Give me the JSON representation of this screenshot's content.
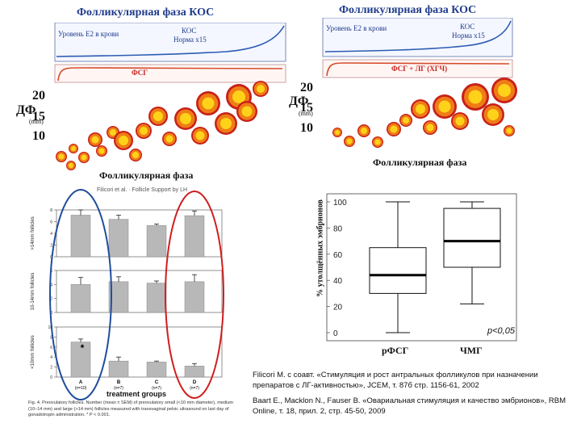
{
  "left_panel": {
    "title": "Фолликулярная фаза КОС",
    "legend_e2": "Уровень Е2 в крови",
    "legend_cos": "КОС",
    "legend_norm": "Норма х15",
    "fsh_label": "ФСГ",
    "y_label": "ДФ",
    "y_unit": "(mm)",
    "y_ticks": [
      "20",
      "15",
      "10"
    ],
    "x_label": "Фолликулярная фаза"
  },
  "right_panel": {
    "title": "Фолликулярная фаза КОС",
    "legend_e2": "Уровень Е2 в крови",
    "legend_cos": "КОС",
    "legend_norm": "Норма х15",
    "fsh_label": "ФСГ + ЛГ (ХГЧ)",
    "y_label": "ДФ",
    "y_unit": "(mm)",
    "y_ticks": [
      "20",
      "15",
      "10"
    ],
    "x_label": "Фолликулярная фаза"
  },
  "bar_figure": {
    "header": "Filicori et al. · Follicle Support by LH",
    "row_labels": [
      ">14mm follicles",
      "10-14mm follicles",
      "<10mm follicles"
    ],
    "groups": [
      {
        "name": "A",
        "n": "(n=10)"
      },
      {
        "name": "B",
        "n": "(n=7)"
      },
      {
        "name": "C",
        "n": "(n=7)"
      },
      {
        "name": "D",
        "n": "(n=7)"
      }
    ],
    "row1_ticks": [
      "8",
      "6",
      "4",
      "2",
      "0"
    ],
    "row2_ticks": [
      "6",
      "4",
      "2",
      "0"
    ],
    "row3_ticks": [
      "10",
      "8",
      "6",
      "4",
      "2",
      "0"
    ],
    "asterisk": "*",
    "x_title": "treatment groups",
    "caption": "Fig. 4. Preovulatory follicles. Number (mean ± SEM) of preovulatory small (<10 mm diameter), medium (10–14 mm) and large (>14 mm) follicles measured with transvaginal pelvic ultrasound on last day of gonadotropin administration. * P < 0.001."
  },
  "chart_data": [
    {
      "type": "bar",
      "title": ">14mm follicles",
      "categories": [
        "A",
        "B",
        "C",
        "D"
      ],
      "values": [
        8.0,
        7.2,
        6.0,
        7.9
      ],
      "errors": [
        1.0,
        0.8,
        0.3,
        0.9
      ],
      "ylim": [
        0,
        9
      ]
    },
    {
      "type": "bar",
      "title": "10-14mm follicles",
      "categories": [
        "A",
        "B",
        "C",
        "D"
      ],
      "values": [
        4.0,
        4.4,
        4.2,
        4.4
      ],
      "errors": [
        1.0,
        0.7,
        0.3,
        1.0
      ],
      "ylim": [
        0,
        6
      ]
    },
    {
      "type": "bar",
      "title": "<10mm follicles",
      "categories": [
        "A",
        "B",
        "C",
        "D"
      ],
      "values": [
        7.0,
        3.2,
        3.0,
        2.2
      ],
      "errors": [
        0.6,
        0.8,
        0.2,
        0.5
      ],
      "ylim": [
        0,
        10
      ]
    },
    {
      "type": "box",
      "title": "",
      "ylabel": "% утолщённых эмбрионов",
      "ylim": [
        0,
        100
      ],
      "y_ticks": [
        0,
        20,
        40,
        60,
        80,
        100
      ],
      "categories": [
        "рФСГ",
        "ЧМГ"
      ],
      "boxes": [
        {
          "min": 0,
          "q1": 30,
          "median": 44,
          "q3": 65,
          "max": 100
        },
        {
          "min": 22,
          "q1": 50,
          "median": 70,
          "q3": 95,
          "max": 100
        }
      ],
      "annotation": "p<0,05"
    }
  ],
  "box_figure": {
    "ylabel": "% утолщённых эмбрионов",
    "cat1": "рФСГ",
    "cat2": "ЧМГ",
    "annotation": "p<0,05"
  },
  "references": {
    "ref1": "Filicori M. с соавт. «Стимуляция и рост антральных фолликулов при назначении препаратов с ЛГ-активностью», JCEM, т. 87б стр. 1156-61, 2002",
    "ref2": "Baart E., Macklon N., Fauser B. «Овариальная стимуляция и качество эмбрионов», RBM Online, т. 18, прил. 2, стр. 45-50, 2009"
  },
  "colors": {
    "title_blue": "#1f3b8c",
    "follicle_orange": "#ef7d16",
    "follicle_yellow": "#ffd21a",
    "follicle_red": "#c8201a",
    "ellipse_blue": "#1f4e9c",
    "ellipse_red": "#d01e1e",
    "bar_gray": "#b8b8b8"
  }
}
